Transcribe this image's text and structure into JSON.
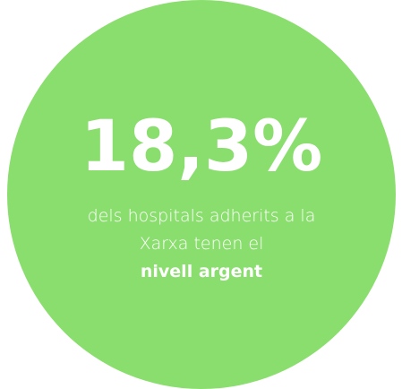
{
  "stat": {
    "value": "18,3%",
    "lines": [
      "dels hospitals adherits a la",
      "Xarxa tenen el"
    ],
    "highlight": "nivell argent"
  }
}
